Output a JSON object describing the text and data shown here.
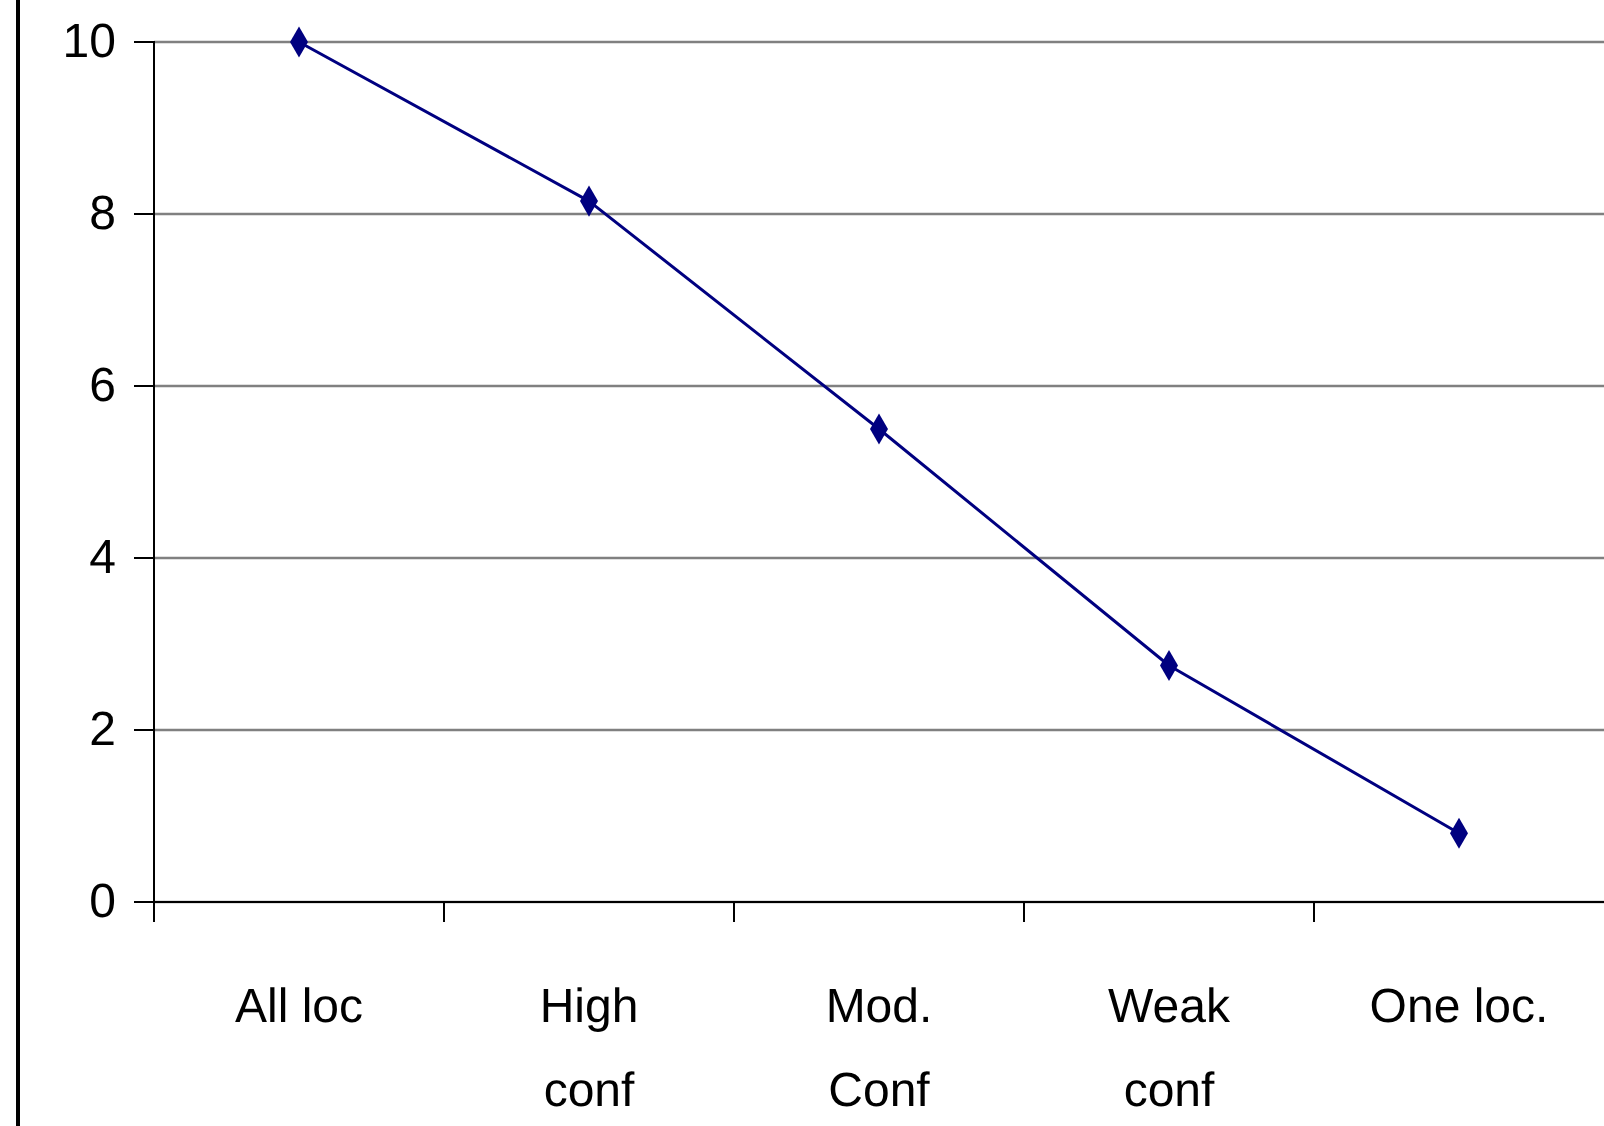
{
  "chart_data": {
    "type": "line",
    "categories": [
      "All loc",
      "High\nconf",
      "Mod.\nConf",
      "Weak\nconf",
      "One loc."
    ],
    "series": [
      {
        "color": "#000080",
        "values": [
          10,
          8.15,
          5.5,
          2.75,
          0.8
        ]
      }
    ],
    "ylim": [
      0,
      10
    ],
    "yticks": [
      0,
      2,
      4,
      6,
      8,
      10
    ],
    "grid": "y",
    "marker": "diamond",
    "line_style": "solid"
  }
}
